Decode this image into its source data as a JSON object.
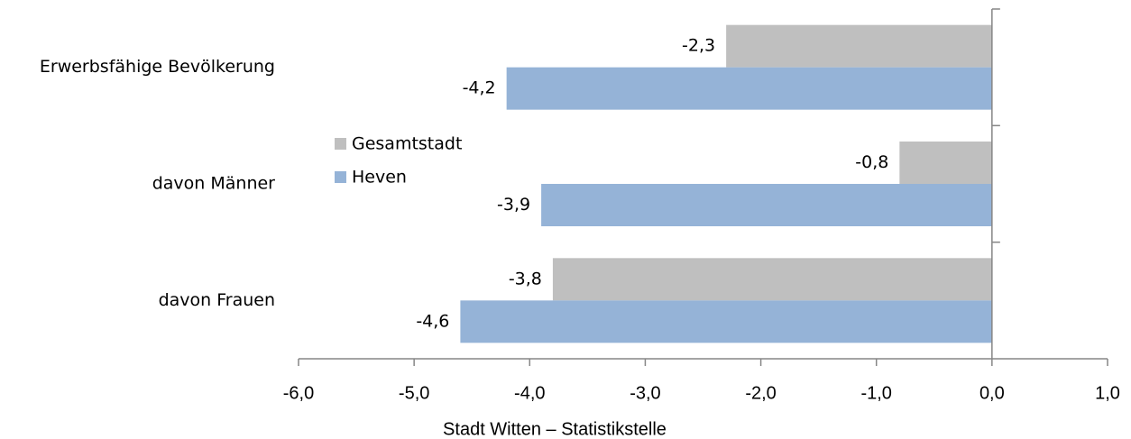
{
  "chart_data": {
    "type": "hbar",
    "categories": [
      "Erwerbsfähige Bevölkerung",
      "davon Männer",
      "davon Frauen"
    ],
    "series": [
      {
        "name": "Gesamtstadt",
        "color": "#bfbfbf",
        "values": [
          -2.3,
          -0.8,
          -3.8
        ],
        "value_labels": [
          "-2,3",
          "-0,8",
          "-3,8"
        ]
      },
      {
        "name": "Heven",
        "color": "#95b3d7",
        "values": [
          -4.2,
          -3.9,
          -4.6
        ],
        "value_labels": [
          "-4,2",
          "-3,9",
          "-4,6"
        ]
      }
    ],
    "xlim": [
      -6,
      1
    ],
    "xticks": [
      {
        "value": -6,
        "label": "-6,0"
      },
      {
        "value": -5,
        "label": "-5,0"
      },
      {
        "value": -4,
        "label": "-4,0"
      },
      {
        "value": -3,
        "label": "-3,0"
      },
      {
        "value": -2,
        "label": "-2,0"
      },
      {
        "value": -1,
        "label": "-1,0"
      },
      {
        "value": 0,
        "label": "0,0"
      },
      {
        "value": 1,
        "label": "1,0"
      }
    ],
    "x_label": "Stadt Witten – Statistikstelle",
    "legend": "left"
  }
}
